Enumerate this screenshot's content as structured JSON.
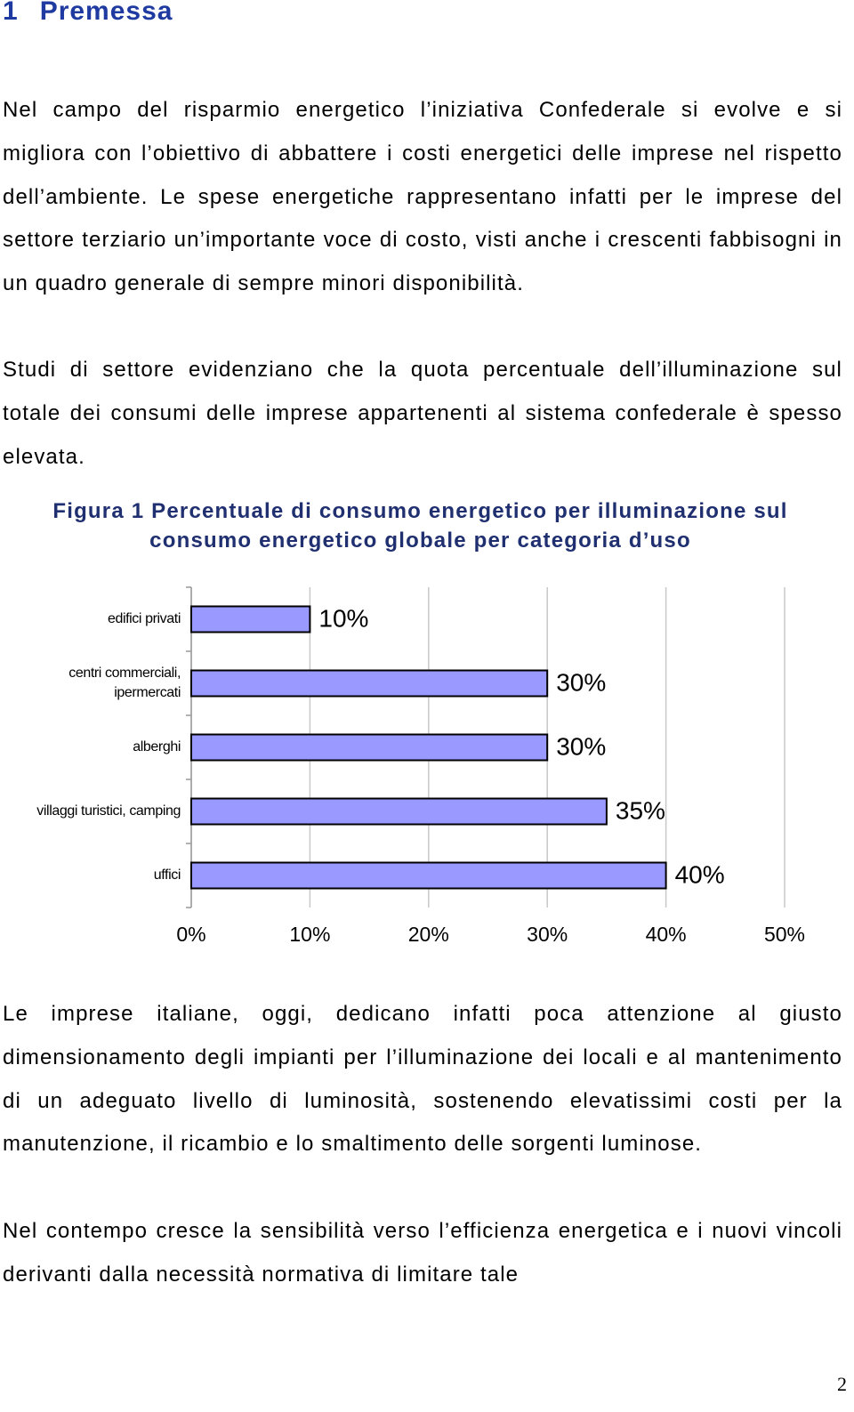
{
  "heading": {
    "number": "1",
    "title": "Premessa"
  },
  "paragraphs": [
    "Nel campo del risparmio energetico l’iniziativa Confederale si evolve e si migliora con l’obiettivo di abbattere i costi energetici delle imprese nel rispetto dell’ambiente. Le spese energetiche rappresentano infatti per le imprese del settore terziario un’importante voce di costo, visti anche i crescenti fabbisogni in un quadro generale di sempre minori disponibilità.",
    "Studi di settore evidenziano che la quota percentuale dell’illuminazione sul totale dei consumi delle imprese appartenenti al sistema confederale è spesso elevata.",
    "Le imprese italiane, oggi, dedicano infatti poca attenzione al giusto dimensionamento degli impianti per l’illuminazione dei locali e al mantenimento di un adeguato livello di luminosità, sostenendo elevatissimi costi per la manutenzione, il ricambio e lo smaltimento delle sorgenti luminose.",
    "Nel contempo cresce la sensibilità verso l’efficienza energetica e i nuovi vincoli derivanti dalla necessità normativa di limitare tale"
  ],
  "chart_data": {
    "type": "hbar",
    "title": "Figura 1 Percentuale di consumo energetico per illuminazione sul consumo energetico globale per categoria d’uso",
    "categories": [
      "edifici privati",
      "centri commerciali, ipermercati",
      "alberghi",
      "villaggi turistici, camping",
      "uffici"
    ],
    "values": [
      10,
      30,
      30,
      35,
      40
    ],
    "value_labels": [
      "10%",
      "30%",
      "30%",
      "35%",
      "40%"
    ],
    "color": "#9999ff",
    "xlim": [
      0,
      50
    ],
    "xticks": [
      {
        "value": 0,
        "label": "0%"
      },
      {
        "value": 10,
        "label": "10%"
      },
      {
        "value": 20,
        "label": "20%"
      },
      {
        "value": 30,
        "label": "30%"
      },
      {
        "value": 40,
        "label": "40%"
      },
      {
        "value": 50,
        "label": "50%"
      }
    ],
    "grid": true
  },
  "page_number": "2"
}
